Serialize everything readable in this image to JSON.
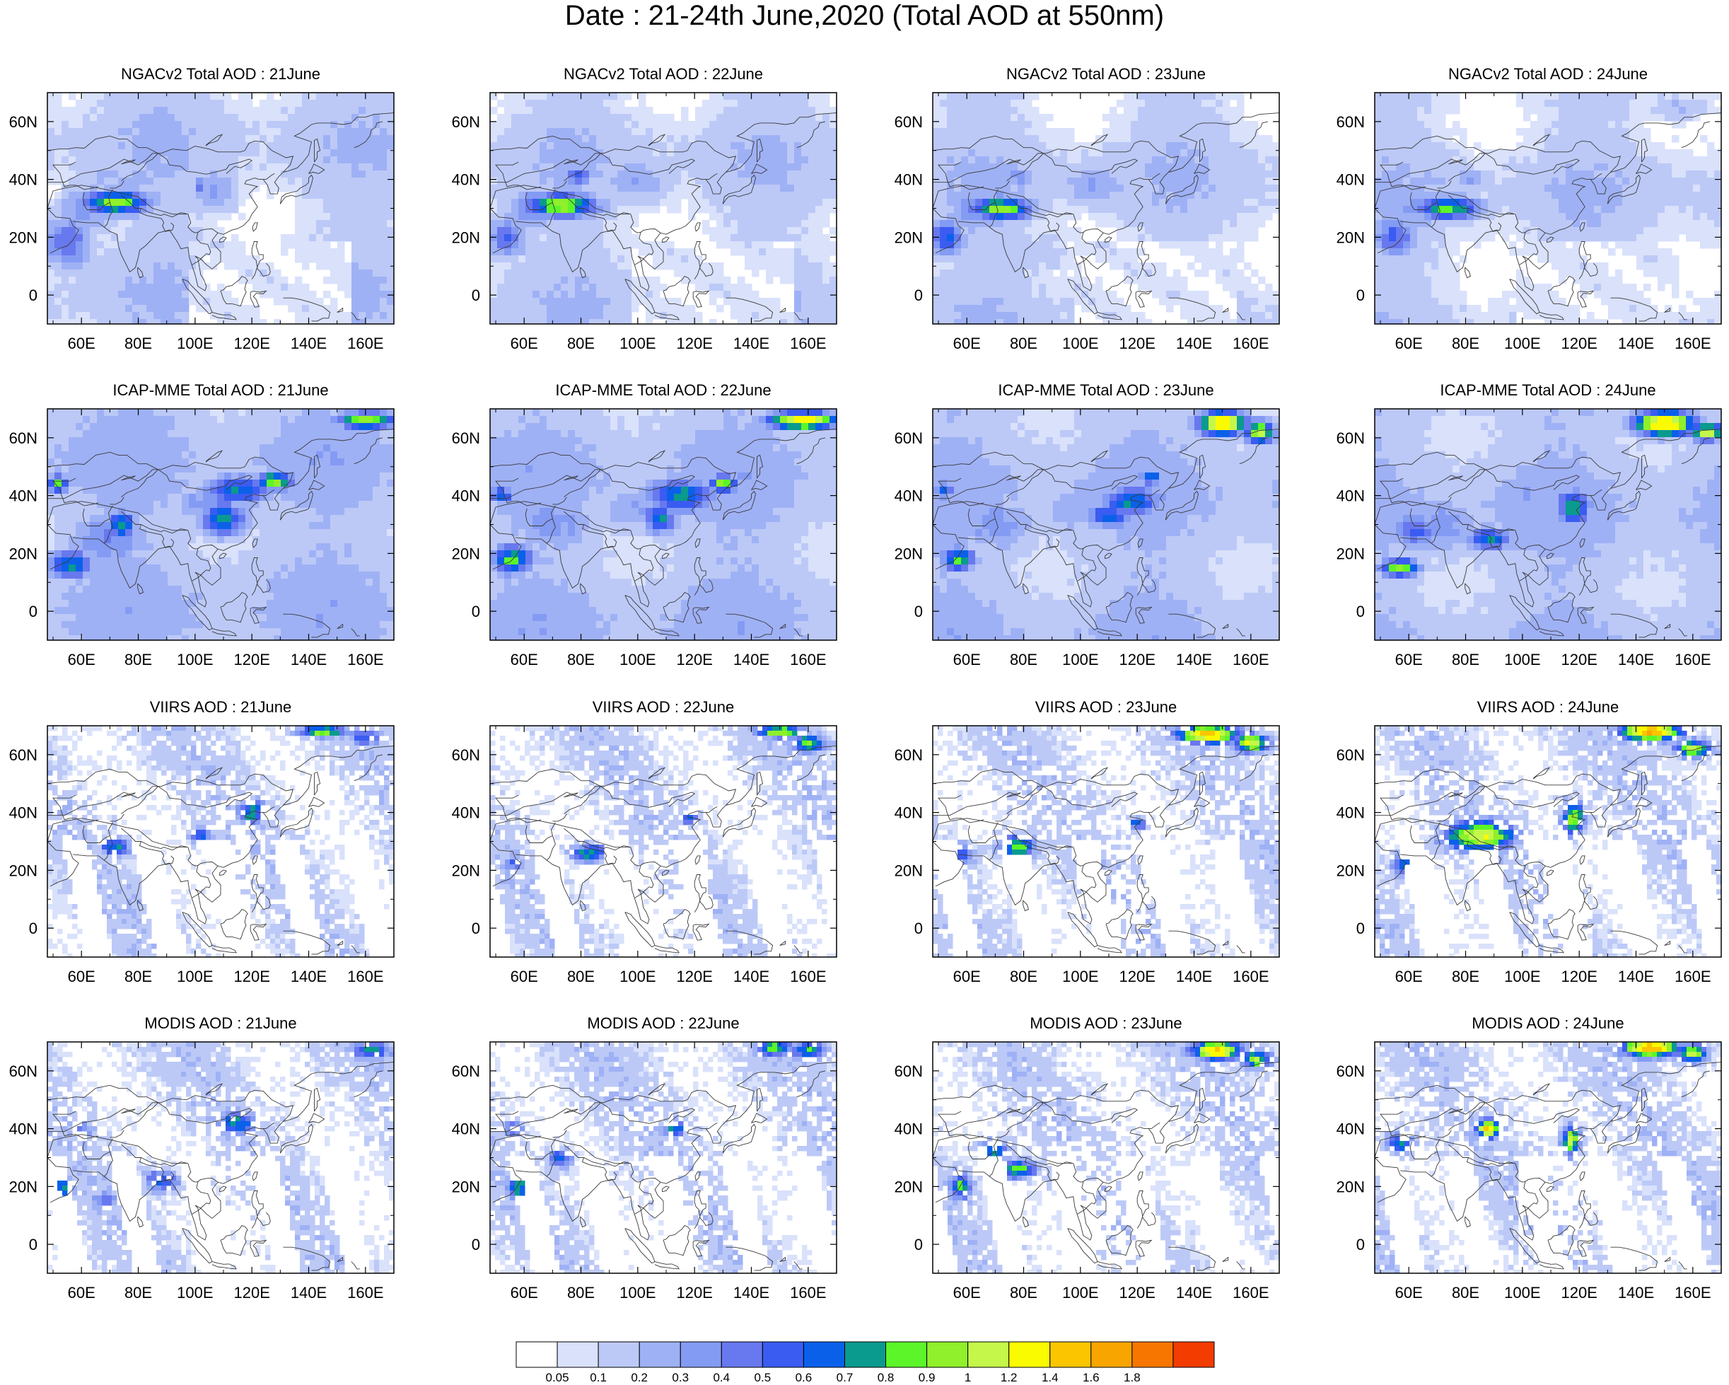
{
  "title": "Date : 21-24th June,2020 (Total AOD at 550nm)",
  "columns": [
    "21June",
    "22June",
    "23June",
    "24June"
  ],
  "rows": [
    {
      "name": "ngac",
      "titles": [
        "NGACv2 Total AOD : 21June",
        "NGACv2 Total AOD : 22June",
        "NGACv2 Total AOD : 23June",
        "NGACv2 Total AOD : 24June"
      ]
    },
    {
      "name": "icap",
      "titles": [
        "ICAP-MME Total AOD : 21June",
        "ICAP-MME Total AOD : 22June",
        "ICAP-MME Total AOD : 23June",
        "ICAP-MME Total AOD : 24June"
      ]
    },
    {
      "name": "viirs",
      "titles": [
        "VIIRS AOD : 21June",
        "VIIRS AOD : 22June",
        "VIIRS AOD : 23June",
        "VIIRS AOD : 24June"
      ]
    },
    {
      "name": "modis",
      "titles": [
        "MODIS AOD : 21June",
        "MODIS AOD : 22June",
        "MODIS AOD : 23June",
        "MODIS AOD : 24June"
      ]
    }
  ],
  "lon_ticks": [
    "60E",
    "80E",
    "100E",
    "120E",
    "140E",
    "160E"
  ],
  "lon_values": [
    60,
    80,
    100,
    120,
    140,
    160
  ],
  "lat_ticks": [
    "60N",
    "40N",
    "20N",
    "0"
  ],
  "lat_values": [
    60,
    40,
    20,
    0
  ],
  "lon_range": [
    48,
    170
  ],
  "lat_range": [
    -10,
    70
  ],
  "colorbar": {
    "colors": [
      "#ffffff",
      "#d9e1fb",
      "#bcc9f7",
      "#9fb1f5",
      "#849bf4",
      "#6878ee",
      "#3a5cf1",
      "#0b60ea",
      "#0a9a8e",
      "#5cf52a",
      "#8ff02b",
      "#c4f74a",
      "#fbfb00",
      "#fbc600",
      "#f9a500",
      "#f77600",
      "#f23c00"
    ],
    "labels": [
      "0.05",
      "0.1",
      "0.2",
      "0.3",
      "0.4",
      "0.5",
      "0.6",
      "0.7",
      "0.8",
      "0.9",
      "1",
      "1.2",
      "1.4",
      "1.6",
      "1.8"
    ]
  }
}
